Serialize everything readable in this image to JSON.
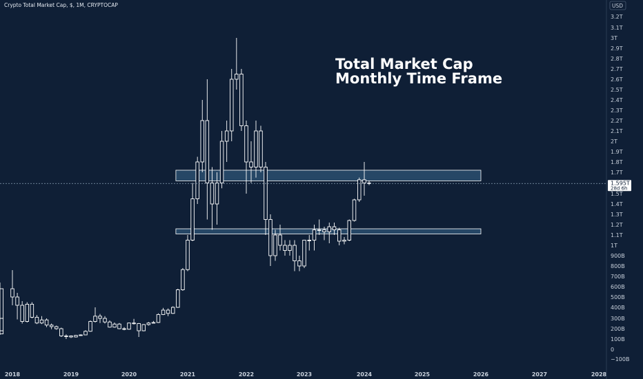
{
  "header": {
    "symbol": "Crypto Total Market Cap, $, 1M, CRYPTOCAP"
  },
  "currency": "USD",
  "price_badge": {
    "price": "1.595T",
    "countdown": "28d 6h"
  },
  "colors": {
    "background": "#0f1f36",
    "candle_body": "#0f1f36",
    "candle_outline": "#ffffff",
    "zone_fill": "#2a4f6e",
    "zone_border": "#ffffff",
    "price_line": "#8da3b8"
  },
  "annotation": {
    "line1": "Total Market Cap",
    "line2": "Monthly Time Frame"
  },
  "chart_data": {
    "type": "candlestick",
    "title": "Crypto Total Market Cap, $, 1M, CRYPTOCAP",
    "y_axis": {
      "ticks": [
        -100,
        0,
        100,
        200,
        300,
        400,
        500,
        600,
        700,
        800,
        900,
        1000,
        1100,
        1200,
        1300,
        1400,
        1500,
        1700,
        1800,
        1900,
        2000,
        2100,
        2200,
        2300,
        2400,
        2500,
        2600,
        2700,
        2800,
        2900,
        3000,
        3100,
        3200
      ],
      "tick_labels": [
        "−100B",
        "0",
        "100B",
        "200B",
        "300B",
        "400B",
        "500B",
        "600B",
        "700B",
        "800B",
        "900B",
        "1T",
        "1.1T",
        "1.2T",
        "1.3T",
        "1.4T",
        "1.5T",
        "1.7T",
        "1.8T",
        "1.9T",
        "2T",
        "2.1T",
        "2.2T",
        "2.3T",
        "2.4T",
        "2.5T",
        "2.6T",
        "2.7T",
        "2.8T",
        "2.9T",
        "3T",
        "3.1T",
        "3.2T"
      ],
      "unit": "billion USD"
    },
    "x_axis": {
      "ticks": [
        "2018",
        "2019",
        "2020",
        "2021",
        "2022",
        "2023",
        "2024",
        "2025",
        "2026",
        "2027",
        "2028"
      ],
      "range": [
        "2017-10",
        "2028-01"
      ]
    },
    "zones": [
      {
        "low": 1620,
        "high": 1720,
        "from": "2020-12",
        "to": "2026-01"
      },
      {
        "low": 1110,
        "high": 1160,
        "from": "2020-12",
        "to": "2026-01"
      }
    ],
    "current_price": 1595,
    "candles": [
      {
        "t": "2017-10",
        "o": 150,
        "h": 185,
        "l": 140,
        "c": 180
      },
      {
        "t": "2017-11",
        "o": 180,
        "h": 320,
        "l": 175,
        "c": 300
      },
      {
        "t": "2017-12",
        "o": 300,
        "h": 640,
        "l": 290,
        "c": 580
      },
      {
        "t": "2018-01",
        "o": 580,
        "h": 760,
        "l": 420,
        "c": 500
      },
      {
        "t": "2018-02",
        "o": 500,
        "h": 540,
        "l": 290,
        "c": 420
      },
      {
        "t": "2018-03",
        "o": 420,
        "h": 460,
        "l": 250,
        "c": 270
      },
      {
        "t": "2018-04",
        "o": 270,
        "h": 450,
        "l": 260,
        "c": 430
      },
      {
        "t": "2018-05",
        "o": 430,
        "h": 450,
        "l": 300,
        "c": 310
      },
      {
        "t": "2018-06",
        "o": 310,
        "h": 330,
        "l": 245,
        "c": 255
      },
      {
        "t": "2018-07",
        "o": 255,
        "h": 320,
        "l": 245,
        "c": 285
      },
      {
        "t": "2018-08",
        "o": 285,
        "h": 300,
        "l": 215,
        "c": 235
      },
      {
        "t": "2018-09",
        "o": 235,
        "h": 250,
        "l": 195,
        "c": 220
      },
      {
        "t": "2018-10",
        "o": 220,
        "h": 230,
        "l": 190,
        "c": 200
      },
      {
        "t": "2018-11",
        "o": 200,
        "h": 210,
        "l": 120,
        "c": 130
      },
      {
        "t": "2018-12",
        "o": 130,
        "h": 145,
        "l": 100,
        "c": 130
      },
      {
        "t": "2019-01",
        "o": 130,
        "h": 135,
        "l": 110,
        "c": 120
      },
      {
        "t": "2019-02",
        "o": 120,
        "h": 140,
        "l": 115,
        "c": 135
      },
      {
        "t": "2019-03",
        "o": 135,
        "h": 145,
        "l": 130,
        "c": 140
      },
      {
        "t": "2019-04",
        "o": 140,
        "h": 185,
        "l": 138,
        "c": 175
      },
      {
        "t": "2019-05",
        "o": 175,
        "h": 280,
        "l": 170,
        "c": 270
      },
      {
        "t": "2019-06",
        "o": 270,
        "h": 400,
        "l": 260,
        "c": 320
      },
      {
        "t": "2019-07",
        "o": 320,
        "h": 340,
        "l": 255,
        "c": 300
      },
      {
        "t": "2019-08",
        "o": 300,
        "h": 320,
        "l": 250,
        "c": 265
      },
      {
        "t": "2019-09",
        "o": 265,
        "h": 280,
        "l": 210,
        "c": 215
      },
      {
        "t": "2019-10",
        "o": 215,
        "h": 260,
        "l": 210,
        "c": 245
      },
      {
        "t": "2019-11",
        "o": 245,
        "h": 255,
        "l": 195,
        "c": 200
      },
      {
        "t": "2019-12",
        "o": 200,
        "h": 215,
        "l": 185,
        "c": 195
      },
      {
        "t": "2020-01",
        "o": 195,
        "h": 260,
        "l": 190,
        "c": 255
      },
      {
        "t": "2020-02",
        "o": 255,
        "h": 295,
        "l": 240,
        "c": 250
      },
      {
        "t": "2020-03",
        "o": 250,
        "h": 255,
        "l": 120,
        "c": 180
      },
      {
        "t": "2020-04",
        "o": 180,
        "h": 245,
        "l": 175,
        "c": 240
      },
      {
        "t": "2020-05",
        "o": 240,
        "h": 265,
        "l": 230,
        "c": 255
      },
      {
        "t": "2020-06",
        "o": 255,
        "h": 275,
        "l": 250,
        "c": 260
      },
      {
        "t": "2020-07",
        "o": 260,
        "h": 345,
        "l": 255,
        "c": 335
      },
      {
        "t": "2020-08",
        "o": 335,
        "h": 395,
        "l": 330,
        "c": 375
      },
      {
        "t": "2020-09",
        "o": 375,
        "h": 390,
        "l": 320,
        "c": 345
      },
      {
        "t": "2020-10",
        "o": 345,
        "h": 410,
        "l": 340,
        "c": 400
      },
      {
        "t": "2020-11",
        "o": 400,
        "h": 580,
        "l": 395,
        "c": 570
      },
      {
        "t": "2020-12",
        "o": 570,
        "h": 780,
        "l": 560,
        "c": 765
      },
      {
        "t": "2021-01",
        "o": 765,
        "h": 1100,
        "l": 750,
        "c": 1050
      },
      {
        "t": "2021-02",
        "o": 1050,
        "h": 1600,
        "l": 1040,
        "c": 1450
      },
      {
        "t": "2021-03",
        "o": 1450,
        "h": 1850,
        "l": 1400,
        "c": 1800
      },
      {
        "t": "2021-04",
        "o": 1800,
        "h": 2400,
        "l": 1700,
        "c": 2200
      },
      {
        "t": "2021-05",
        "o": 2200,
        "h": 2600,
        "l": 1250,
        "c": 1600
      },
      {
        "t": "2021-06",
        "o": 1600,
        "h": 1750,
        "l": 1150,
        "c": 1400
      },
      {
        "t": "2021-07",
        "o": 1400,
        "h": 1700,
        "l": 1200,
        "c": 1600
      },
      {
        "t": "2021-08",
        "o": 1600,
        "h": 2100,
        "l": 1550,
        "c": 2000
      },
      {
        "t": "2021-09",
        "o": 2000,
        "h": 2200,
        "l": 1800,
        "c": 2100
      },
      {
        "t": "2021-10",
        "o": 2100,
        "h": 2700,
        "l": 2000,
        "c": 2600
      },
      {
        "t": "2021-11",
        "o": 2600,
        "h": 3000,
        "l": 2500,
        "c": 2650
      },
      {
        "t": "2021-12",
        "o": 2650,
        "h": 2700,
        "l": 2100,
        "c": 2150
      },
      {
        "t": "2022-01",
        "o": 2150,
        "h": 2200,
        "l": 1500,
        "c": 1800
      },
      {
        "t": "2022-02",
        "o": 1800,
        "h": 2000,
        "l": 1600,
        "c": 1750
      },
      {
        "t": "2022-03",
        "o": 1750,
        "h": 2200,
        "l": 1650,
        "c": 2100
      },
      {
        "t": "2022-04",
        "o": 2100,
        "h": 2150,
        "l": 1700,
        "c": 1750
      },
      {
        "t": "2022-05",
        "o": 1750,
        "h": 1800,
        "l": 1100,
        "c": 1250
      },
      {
        "t": "2022-06",
        "o": 1250,
        "h": 1300,
        "l": 800,
        "c": 900
      },
      {
        "t": "2022-07",
        "o": 900,
        "h": 1150,
        "l": 850,
        "c": 1100
      },
      {
        "t": "2022-08",
        "o": 1100,
        "h": 1200,
        "l": 950,
        "c": 1000
      },
      {
        "t": "2022-09",
        "o": 1000,
        "h": 1050,
        "l": 900,
        "c": 950
      },
      {
        "t": "2022-10",
        "o": 950,
        "h": 1050,
        "l": 900,
        "c": 1000
      },
      {
        "t": "2022-11",
        "o": 1000,
        "h": 1050,
        "l": 750,
        "c": 850
      },
      {
        "t": "2022-12",
        "o": 850,
        "h": 900,
        "l": 750,
        "c": 800
      },
      {
        "t": "2023-01",
        "o": 800,
        "h": 1050,
        "l": 780,
        "c": 1050
      },
      {
        "t": "2023-02",
        "o": 1050,
        "h": 1100,
        "l": 950,
        "c": 1050
      },
      {
        "t": "2023-03",
        "o": 1050,
        "h": 1200,
        "l": 950,
        "c": 1150
      },
      {
        "t": "2023-04",
        "o": 1150,
        "h": 1250,
        "l": 1100,
        "c": 1150
      },
      {
        "t": "2023-05",
        "o": 1150,
        "h": 1180,
        "l": 1050,
        "c": 1130
      },
      {
        "t": "2023-06",
        "o": 1130,
        "h": 1220,
        "l": 1020,
        "c": 1180
      },
      {
        "t": "2023-07",
        "o": 1180,
        "h": 1220,
        "l": 1100,
        "c": 1150
      },
      {
        "t": "2023-08",
        "o": 1150,
        "h": 1170,
        "l": 1000,
        "c": 1040
      },
      {
        "t": "2023-09",
        "o": 1040,
        "h": 1080,
        "l": 1010,
        "c": 1050
      },
      {
        "t": "2023-10",
        "o": 1050,
        "h": 1250,
        "l": 1040,
        "c": 1240
      },
      {
        "t": "2023-11",
        "o": 1240,
        "h": 1450,
        "l": 1230,
        "c": 1440
      },
      {
        "t": "2023-12",
        "o": 1440,
        "h": 1650,
        "l": 1420,
        "c": 1630
      },
      {
        "t": "2024-01",
        "o": 1630,
        "h": 1800,
        "l": 1480,
        "c": 1600
      },
      {
        "t": "2024-02",
        "o": 1600,
        "h": 1620,
        "l": 1580,
        "c": 1595
      }
    ]
  }
}
